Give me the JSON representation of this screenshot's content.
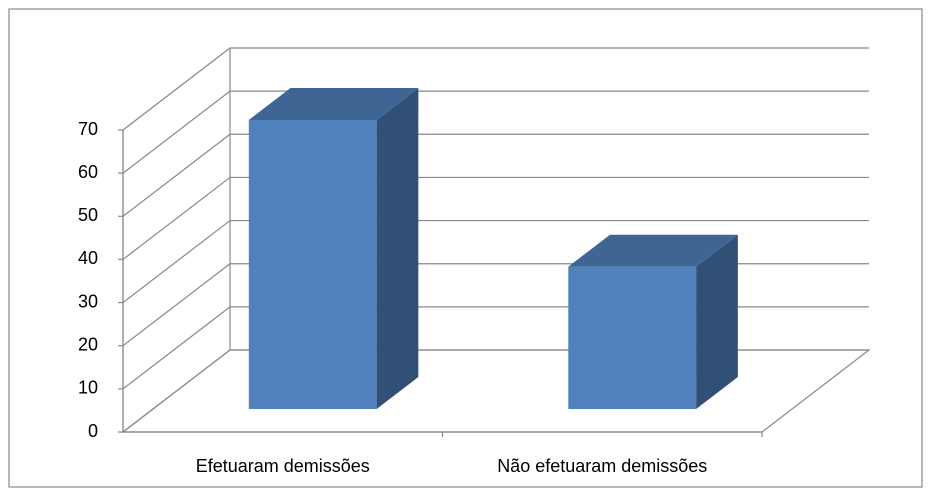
{
  "chart_data": {
    "type": "bar3d",
    "categories": [
      "Efetuaram demissões",
      "Não efetuaram demissões"
    ],
    "values": [
      67,
      33
    ],
    "color": "#4f81bd",
    "ylim": [
      0,
      70
    ],
    "yticks": [
      0,
      10,
      20,
      30,
      40,
      50,
      60,
      70
    ],
    "grid": true
  }
}
